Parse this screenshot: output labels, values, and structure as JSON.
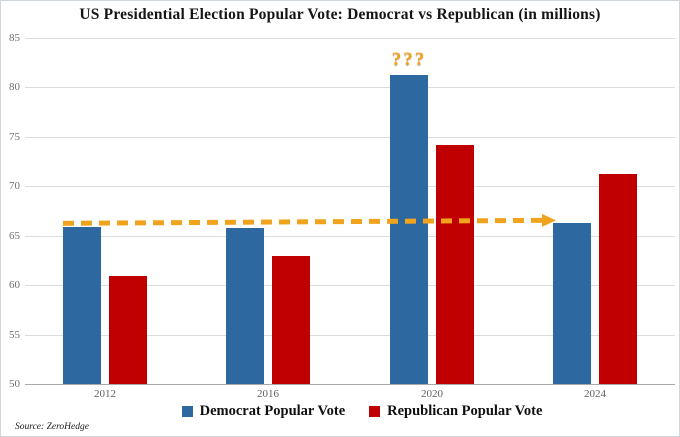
{
  "title": "US Presidential Election Popular Vote: Democrat vs Republican (in millions)",
  "source": "Source: ZeroHedge",
  "colors": {
    "democrat": "#2d68a0",
    "republican": "#c00000",
    "arrow": "#f0a41e",
    "gridline": "#dcdcdc",
    "axis": "#a9a9a9",
    "tick_text": "#6f6f6f"
  },
  "chart_data": {
    "type": "bar",
    "title": "US Presidential Election Popular Vote: Democrat vs Republican (in millions)",
    "categories": [
      "2012",
      "2016",
      "2020",
      "2024"
    ],
    "series": [
      {
        "name": "Democrat Popular Vote",
        "color_key": "democrat",
        "values": [
          65.9,
          65.8,
          81.3,
          66.3
        ]
      },
      {
        "name": "Republican Popular Vote",
        "color_key": "republican",
        "values": [
          60.9,
          63.0,
          74.2,
          71.2
        ]
      }
    ],
    "xlabel": "",
    "ylabel": "",
    "ylim": [
      50,
      85
    ],
    "yticks": [
      85,
      80,
      75,
      70,
      65,
      60,
      55,
      50
    ],
    "grid": true,
    "legend_position": "bottom",
    "annotations": [
      {
        "type": "text",
        "text": "???",
        "category": "2020",
        "series": "Democrat Popular Vote",
        "position": "above-bar"
      },
      {
        "type": "dashed-arrow",
        "from_category": "2012",
        "from_value": 66.0,
        "to_category": "2024",
        "to_value": 66.3
      }
    ]
  },
  "legend": [
    {
      "label": "Democrat Popular Vote",
      "color_key": "democrat"
    },
    {
      "label": "Republican Popular Vote",
      "color_key": "republican"
    }
  ]
}
